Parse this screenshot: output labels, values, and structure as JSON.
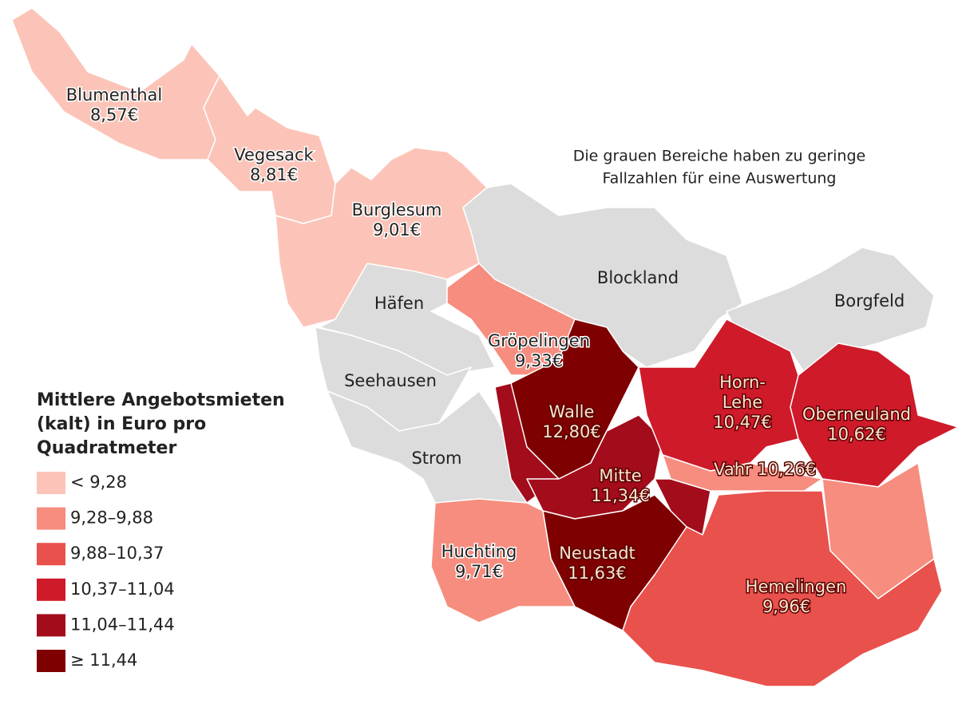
{
  "note": [
    "Die grauen Bereiche haben zu geringe",
    "Fallzahlen für eine Auswertung"
  ],
  "legend": {
    "title": [
      "Mittlere Angebotsmieten",
      "(kalt) in Euro pro",
      "Quadratmeter"
    ],
    "items": [
      {
        "label": "< 9,28",
        "color": "#fcc4b8"
      },
      {
        "label": "9,28–9,88",
        "color": "#f68d7f"
      },
      {
        "label": "9,88–10,37",
        "color": "#e9514c"
      },
      {
        "label": "10,37–11,04",
        "color": "#cf1a2a"
      },
      {
        "label": "11,04–11,44",
        "color": "#a30c1b"
      },
      {
        "label": "≥ 11,44",
        "color": "#7f0000"
      }
    ]
  },
  "districts": [
    {
      "name": "Blumenthal",
      "value": "8,57€"
    },
    {
      "name": "Vegesack",
      "value": "8,81€"
    },
    {
      "name": "Burglesum",
      "value": "9,01€"
    },
    {
      "name": "Gröpelingen",
      "value": "9,33€"
    },
    {
      "name": "Walle",
      "value": "12,80€"
    },
    {
      "name": "Mitte",
      "value": "11,34€"
    },
    {
      "name": "Neustadt",
      "value": "11,63€"
    },
    {
      "name": "Huchting",
      "value": "9,71€"
    },
    {
      "name": "Horn-",
      "name2": "Lehe",
      "value": "10,47€"
    },
    {
      "name": "Oberneuland",
      "value": "10,62€"
    },
    {
      "name": "Vahr 10,26€"
    },
    {
      "name": "Hemelingen",
      "value": "9,96€"
    }
  ],
  "gray_areas": [
    "Blockland",
    "Borgfeld",
    "Häfen",
    "Seehausen",
    "Strom"
  ]
}
